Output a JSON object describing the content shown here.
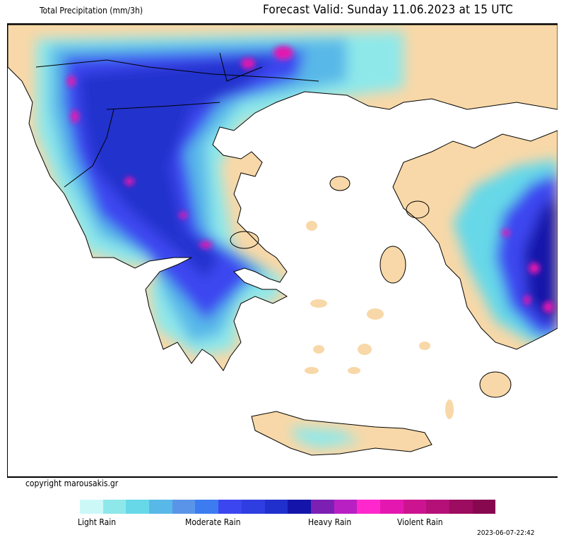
{
  "header": {
    "title": "Total Precipitation (mm/3h)",
    "forecast": "Forecast Valid:  Sunday 11.06.2023 at 15 UTC"
  },
  "map": {
    "sea_color": "#ffffff",
    "land_color": "#f8d8a8",
    "border_color": "#000000"
  },
  "copyright": "copyright marousakis.gr",
  "legend": {
    "colors": [
      "#ccf8f8",
      "#8ee8ea",
      "#66d8e8",
      "#58b8e8",
      "#5a94e8",
      "#3c7cf0",
      "#3c46f0",
      "#2e3ee0",
      "#2030cc",
      "#1414aa",
      "#7c20b4",
      "#b820c4",
      "#ff28cc",
      "#e418b0",
      "#cc1490",
      "#b41078",
      "#9c0c60",
      "#880850"
    ],
    "labels": [
      "Light Rain",
      "Moderate Rain",
      "Heavy Rain",
      "Violent Rain"
    ]
  },
  "timestamp": "2023-06-07-22:42"
}
